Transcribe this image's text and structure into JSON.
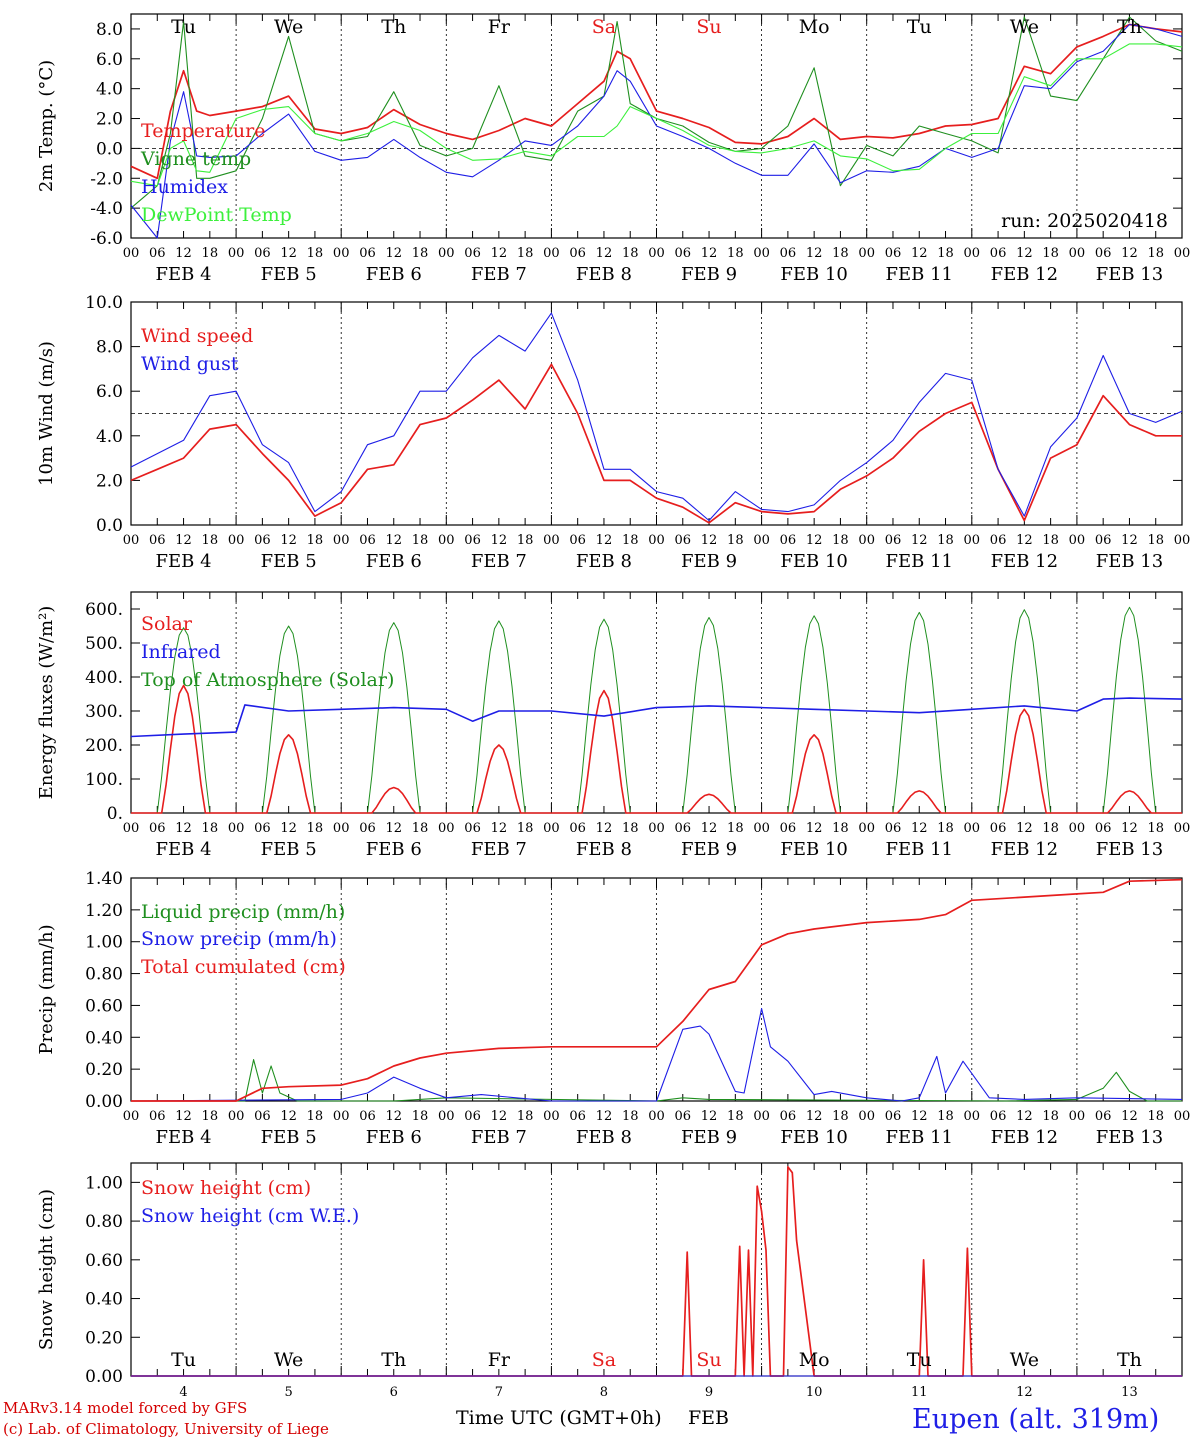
{
  "footer": {
    "model": "MARv3.14 model forced by GFS",
    "credit": "(c) Lab. of Climatology, University of Liege",
    "axis_title": "Time UTC (GMT+0h)",
    "month": "FEB",
    "station": "Eupen (alt. 319m)"
  },
  "time_axis": {
    "hour_ticks": [
      "00",
      "06",
      "12",
      "18"
    ],
    "dates": [
      "FEB  4",
      "FEB  5",
      "FEB  6",
      "FEB  7",
      "FEB  8",
      "FEB  9",
      "FEB 10",
      "FEB 11",
      "FEB 12",
      "FEB 13"
    ],
    "day_numbers": [
      "4",
      "5",
      "6",
      "7",
      "8",
      "9",
      "10",
      "11",
      "12",
      "13"
    ],
    "weekdays": [
      "Tu",
      "We",
      "Th",
      "Fr",
      "Sa",
      "Su",
      "Mo",
      "Tu",
      "We",
      "Th"
    ],
    "weekend_color": "#e61e1e"
  },
  "chart_data": [
    {
      "type": "line",
      "ylabel": "2m Temp. (°C)",
      "ylim": [
        -6,
        9
      ],
      "yticks": [
        "-6.0",
        "-4.0",
        "-2.0",
        "0.0",
        "2.0",
        "4.0",
        "6.0",
        "8.0"
      ],
      "reference_line": 0,
      "run_label": "run: 2025020418",
      "x_unit": "hours since FEB 4 00 UTC",
      "series": [
        {
          "name": "Temperature",
          "color": "#e61e1e",
          "x": [
            0,
            6,
            9,
            12,
            15,
            18,
            24,
            30,
            36,
            42,
            48,
            54,
            60,
            66,
            72,
            78,
            84,
            90,
            96,
            102,
            108,
            111,
            114,
            120,
            126,
            132,
            138,
            144,
            150,
            156,
            162,
            168,
            174,
            180,
            186,
            192,
            198,
            204,
            210,
            216,
            222,
            228,
            234,
            240
          ],
          "values": [
            -1.2,
            -2.0,
            2.5,
            5.2,
            2.5,
            2.2,
            2.5,
            2.8,
            3.5,
            1.3,
            1.0,
            1.4,
            2.6,
            1.6,
            1.0,
            0.6,
            1.2,
            2.0,
            1.5,
            3.0,
            4.5,
            6.5,
            6.0,
            2.5,
            2.0,
            1.4,
            0.4,
            0.3,
            0.8,
            2.0,
            0.6,
            0.8,
            0.7,
            1.0,
            1.5,
            1.6,
            2.0,
            5.5,
            5.0,
            6.8,
            7.5,
            8.3,
            8.0,
            7.8
          ]
        },
        {
          "name": "Vigne temp",
          "color": "#1f8f1f",
          "x": [
            0,
            6,
            9,
            12,
            15,
            18,
            24,
            30,
            36,
            42,
            48,
            54,
            60,
            66,
            72,
            78,
            84,
            90,
            96,
            102,
            108,
            111,
            114,
            120,
            126,
            132,
            138,
            144,
            150,
            156,
            162,
            168,
            174,
            180,
            186,
            192,
            198,
            204,
            210,
            216,
            222,
            228,
            234,
            240
          ],
          "values": [
            -4.0,
            -2.5,
            1.0,
            8.5,
            -2.0,
            -2.0,
            -1.5,
            2.0,
            7.5,
            1.0,
            0.5,
            0.8,
            3.8,
            0.2,
            -0.5,
            0.0,
            4.2,
            -0.5,
            -0.8,
            2.5,
            3.5,
            8.5,
            3.0,
            2.0,
            1.5,
            0.4,
            -0.2,
            0.0,
            1.5,
            5.4,
            -2.5,
            0.2,
            -0.5,
            1.5,
            1.0,
            0.5,
            -0.3,
            8.8,
            3.5,
            3.2,
            6.0,
            8.8,
            7.2,
            6.5
          ]
        },
        {
          "name": "Humidex",
          "color": "#1e1ee6",
          "x": [
            0,
            6,
            9,
            12,
            15,
            18,
            24,
            30,
            36,
            42,
            48,
            54,
            60,
            66,
            72,
            78,
            84,
            90,
            96,
            102,
            108,
            111,
            114,
            120,
            126,
            132,
            138,
            144,
            150,
            156,
            162,
            168,
            174,
            180,
            186,
            192,
            198,
            204,
            210,
            216,
            222,
            228,
            234,
            240
          ],
          "values": [
            -3.8,
            -6.0,
            0.5,
            3.8,
            -0.5,
            -0.6,
            -0.5,
            1.0,
            2.3,
            -0.2,
            -0.8,
            -0.6,
            0.6,
            -0.6,
            -1.6,
            -1.9,
            -0.8,
            0.5,
            0.2,
            1.5,
            3.5,
            5.2,
            4.5,
            1.5,
            0.8,
            0.0,
            -1.0,
            -1.8,
            -1.8,
            0.3,
            -2.3,
            -1.5,
            -1.6,
            -1.2,
            0.0,
            -0.6,
            0.0,
            4.2,
            4.0,
            5.8,
            6.5,
            8.3,
            8.0,
            7.5
          ]
        },
        {
          "name": "DewPoint Temp",
          "color": "#3cf03c",
          "x": [
            0,
            6,
            9,
            12,
            15,
            18,
            24,
            30,
            36,
            42,
            48,
            54,
            60,
            66,
            72,
            78,
            84,
            90,
            96,
            102,
            108,
            111,
            114,
            120,
            126,
            132,
            138,
            144,
            150,
            156,
            162,
            168,
            174,
            180,
            186,
            192,
            198,
            204,
            210,
            216,
            222,
            228,
            234,
            240
          ],
          "values": [
            -2.2,
            -2.5,
            0.0,
            0.5,
            -1.5,
            -1.6,
            2.0,
            2.6,
            2.8,
            1.0,
            0.5,
            1.0,
            1.8,
            1.2,
            0.0,
            -0.8,
            -0.7,
            -0.2,
            -0.5,
            0.8,
            0.8,
            1.5,
            2.8,
            2.0,
            1.2,
            0.2,
            -0.2,
            -0.3,
            0.0,
            0.5,
            -0.5,
            -0.7,
            -1.5,
            -1.4,
            0.0,
            1.0,
            1.0,
            4.8,
            4.2,
            6.0,
            6.0,
            7.0,
            7.0,
            6.8
          ]
        }
      ]
    },
    {
      "type": "line",
      "ylabel": "10m Wind (m/s)",
      "ylim": [
        0,
        10
      ],
      "yticks": [
        "0.0",
        "2.0",
        "4.0",
        "6.0",
        "8.0",
        "10.0"
      ],
      "reference_line": 5,
      "x_unit": "hours since FEB 4 00 UTC",
      "series": [
        {
          "name": "Wind speed",
          "color": "#e61e1e",
          "x": [
            0,
            6,
            12,
            18,
            24,
            30,
            36,
            42,
            48,
            54,
            60,
            66,
            72,
            78,
            84,
            90,
            96,
            102,
            108,
            114,
            120,
            126,
            132,
            138,
            144,
            150,
            156,
            162,
            168,
            174,
            180,
            186,
            192,
            198,
            204,
            210,
            216,
            222,
            228,
            234,
            240
          ],
          "values": [
            2.0,
            2.5,
            3.0,
            4.3,
            4.5,
            3.2,
            2.0,
            0.4,
            1.0,
            2.5,
            2.7,
            4.5,
            4.8,
            5.6,
            6.5,
            5.2,
            7.2,
            5.0,
            2.0,
            2.0,
            1.2,
            0.8,
            0.1,
            1.0,
            0.6,
            0.5,
            0.6,
            1.6,
            2.2,
            3.0,
            4.2,
            5.0,
            5.5,
            2.5,
            0.2,
            3.0,
            3.6,
            5.8,
            4.5,
            4.0,
            4.0
          ]
        },
        {
          "name": "Wind gust",
          "color": "#1e1ee6",
          "x": [
            0,
            6,
            12,
            18,
            24,
            30,
            36,
            42,
            48,
            54,
            60,
            66,
            72,
            78,
            84,
            90,
            96,
            102,
            108,
            114,
            120,
            126,
            132,
            138,
            144,
            150,
            156,
            162,
            168,
            174,
            180,
            186,
            192,
            198,
            204,
            210,
            216,
            222,
            228,
            234,
            240
          ],
          "values": [
            2.6,
            3.2,
            3.8,
            5.8,
            6.0,
            3.6,
            2.8,
            0.6,
            1.5,
            3.6,
            4.0,
            6.0,
            6.0,
            7.5,
            8.5,
            7.8,
            9.5,
            6.5,
            2.5,
            2.5,
            1.5,
            1.2,
            0.2,
            1.5,
            0.7,
            0.6,
            0.9,
            2.0,
            2.8,
            3.8,
            5.5,
            6.8,
            6.5,
            2.5,
            0.4,
            3.5,
            4.8,
            7.6,
            5.0,
            4.6,
            5.1
          ]
        }
      ]
    },
    {
      "type": "line",
      "ylabel": "Energy fluxes (W/m²)",
      "ylim": [
        0,
        650
      ],
      "yticks": [
        "0.",
        "100.",
        "200.",
        "300.",
        "400.",
        "500.",
        "600."
      ],
      "x_unit": "hours since FEB 4 00 UTC",
      "daily_peaks": {
        "top_of_atmosphere": [
          545,
          550,
          560,
          565,
          570,
          575,
          580,
          590,
          598,
          605
        ],
        "solar": [
          375,
          230,
          75,
          200,
          360,
          55,
          230,
          65,
          305,
          65
        ]
      },
      "series": [
        {
          "name": "Solar",
          "color": "#e61e1e"
        },
        {
          "name": "Infrared",
          "color": "#1e1ee6",
          "x": [
            0,
            12,
            24,
            26,
            36,
            48,
            60,
            72,
            78,
            84,
            96,
            108,
            120,
            132,
            144,
            156,
            168,
            180,
            192,
            204,
            216,
            222,
            228,
            240
          ],
          "values": [
            225,
            232,
            238,
            318,
            300,
            305,
            310,
            305,
            270,
            300,
            300,
            285,
            310,
            315,
            310,
            305,
            300,
            295,
            305,
            315,
            300,
            335,
            338,
            335
          ]
        },
        {
          "name": "Top of Atmosphere (Solar)",
          "color": "#1f8f1f"
        }
      ]
    },
    {
      "type": "line",
      "ylabel": "Precip (mm/h)",
      "ylim": [
        0,
        1.4
      ],
      "yticks": [
        "0.00",
        "0.20",
        "0.40",
        "0.60",
        "0.80",
        "1.00",
        "1.20",
        "1.40"
      ],
      "x_unit": "hours since FEB 4 00 UTC",
      "series": [
        {
          "name": "Liquid precip (mm/h)",
          "color": "#1f8f1f",
          "x": [
            0,
            26,
            28,
            30,
            32,
            34,
            38,
            60,
            72,
            120,
            126,
            132,
            200,
            216,
            222,
            225,
            228,
            232,
            240
          ],
          "values": [
            0,
            0,
            0.26,
            0.05,
            0.22,
            0.05,
            0,
            0,
            0.02,
            0,
            0.02,
            0.01,
            0,
            0.01,
            0.08,
            0.18,
            0.06,
            0,
            0
          ]
        },
        {
          "name": "Snow precip (mm/h)",
          "color": "#1e1ee6",
          "x": [
            0,
            48,
            54,
            60,
            66,
            72,
            80,
            96,
            120,
            126,
            130,
            132,
            138,
            140,
            144,
            146,
            150,
            156,
            160,
            168,
            176,
            180,
            184,
            186,
            190,
            196,
            204,
            216,
            240
          ],
          "values": [
            0,
            0.01,
            0.05,
            0.15,
            0.08,
            0.02,
            0.04,
            0,
            0,
            0.45,
            0.47,
            0.42,
            0.06,
            0.05,
            0.58,
            0.34,
            0.25,
            0.04,
            0.06,
            0.02,
            0,
            0.02,
            0.28,
            0.05,
            0.25,
            0.02,
            0.01,
            0.02,
            0.01
          ]
        },
        {
          "name": "Total cumulated (cm)",
          "color": "#e61e1e",
          "x": [
            0,
            24,
            30,
            36,
            48,
            54,
            60,
            66,
            72,
            84,
            96,
            108,
            120,
            126,
            132,
            138,
            144,
            150,
            156,
            168,
            180,
            186,
            192,
            204,
            216,
            222,
            228,
            240
          ],
          "values": [
            0,
            0,
            0.08,
            0.09,
            0.1,
            0.14,
            0.22,
            0.27,
            0.3,
            0.33,
            0.34,
            0.34,
            0.34,
            0.5,
            0.7,
            0.75,
            0.98,
            1.05,
            1.08,
            1.12,
            1.14,
            1.17,
            1.26,
            1.28,
            1.3,
            1.31,
            1.38,
            1.39
          ]
        }
      ]
    },
    {
      "type": "line",
      "ylabel": "Snow height (cm)",
      "ylim": [
        0,
        1.1
      ],
      "yticks": [
        "0.00",
        "0.20",
        "0.40",
        "0.60",
        "0.80",
        "1.00"
      ],
      "x_unit": "hours since FEB 4 00 UTC",
      "series": [
        {
          "name": "Snow height (cm)",
          "color": "#e61e1e",
          "x": [
            0,
            126,
            127,
            128,
            138,
            139,
            140,
            141,
            142,
            143,
            144,
            145,
            146,
            147,
            148,
            149,
            150,
            151,
            152,
            156,
            157,
            159,
            160,
            161,
            180,
            181,
            182,
            190,
            191,
            192,
            240
          ],
          "values": [
            0,
            0,
            0.64,
            0,
            0,
            0.67,
            0,
            0.65,
            0,
            0.98,
            0.85,
            0.65,
            0,
            0,
            0,
            0,
            1.08,
            1.05,
            0.7,
            0,
            0,
            0,
            0,
            0,
            0,
            0.6,
            0,
            0,
            0.66,
            0,
            0
          ]
        },
        {
          "name": "Snow height (cm W.E.)",
          "color": "#1e1ee6",
          "x": [
            0,
            240
          ],
          "values": [
            0,
            0
          ]
        }
      ]
    }
  ]
}
